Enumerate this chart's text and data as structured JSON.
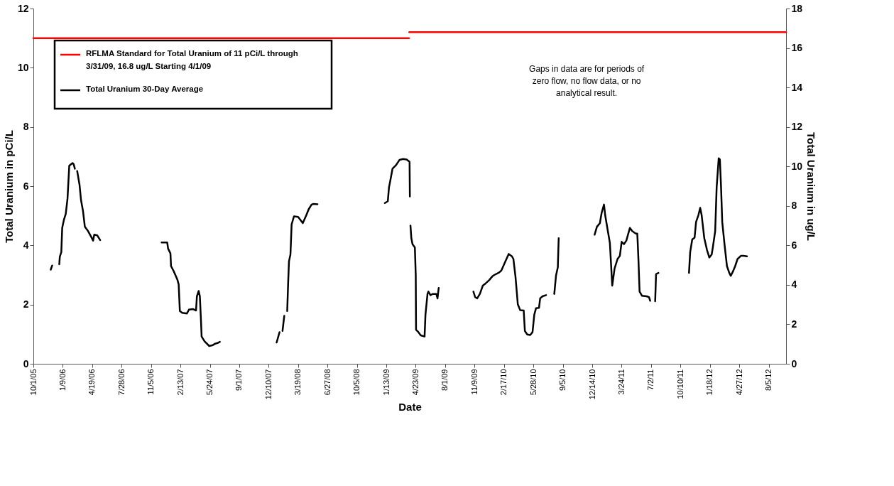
{
  "chart_data": {
    "type": "line",
    "xlabel": "Date",
    "ylabel": "Total Uranium in pCi/L",
    "y2label": "Total Uranium in ug/L",
    "xlim": [
      "2005-10-01",
      "2012-10-03"
    ],
    "xticks": [
      {
        "value": "2005-10-01",
        "label": "10/1/05"
      },
      {
        "value": "2006-01-09",
        "label": "1/9/06"
      },
      {
        "value": "2006-04-19",
        "label": "4/19/06"
      },
      {
        "value": "2006-07-28",
        "label": "7/28/06"
      },
      {
        "value": "2006-11-05",
        "label": "11/5/06"
      },
      {
        "value": "2007-02-13",
        "label": "2/13/07"
      },
      {
        "value": "2007-05-24",
        "label": "5/24/07"
      },
      {
        "value": "2007-09-01",
        "label": "9/1/07"
      },
      {
        "value": "2007-12-10",
        "label": "12/10/07"
      },
      {
        "value": "2008-03-19",
        "label": "3/19/08"
      },
      {
        "value": "2008-06-27",
        "label": "6/27/08"
      },
      {
        "value": "2008-10-05",
        "label": "10/5/08"
      },
      {
        "value": "2009-01-13",
        "label": "1/13/09"
      },
      {
        "value": "2009-04-23",
        "label": "4/23/09"
      },
      {
        "value": "2009-08-01",
        "label": "8/1/09"
      },
      {
        "value": "2009-11-09",
        "label": "11/9/09"
      },
      {
        "value": "2010-02-17",
        "label": "2/17/10"
      },
      {
        "value": "2010-05-28",
        "label": "5/28/10"
      },
      {
        "value": "2010-09-05",
        "label": "9/5/10"
      },
      {
        "value": "2010-12-14",
        "label": "12/14/10"
      },
      {
        "value": "2011-03-24",
        "label": "3/24/11"
      },
      {
        "value": "2011-07-02",
        "label": "7/2/11"
      },
      {
        "value": "2011-10-10",
        "label": "10/10/11"
      },
      {
        "value": "2012-01-18",
        "label": "1/18/12"
      },
      {
        "value": "2012-04-27",
        "label": "4/27/12"
      },
      {
        "value": "2012-08-05",
        "label": "8/5/12"
      }
    ],
    "ylim": [
      0,
      12
    ],
    "yticks": [
      0,
      2,
      4,
      6,
      8,
      10,
      12
    ],
    "y2lim": [
      0,
      18
    ],
    "y2ticks": [
      0,
      2,
      4,
      6,
      8,
      10,
      12,
      14,
      16,
      18
    ],
    "legend": "top left",
    "line_style": "solid",
    "annotations": [
      "Gaps in data are for periods of zero flow,  no flow data, or no analytical result."
    ],
    "series": [
      {
        "name": "RFLMA Standard for Total Uranium of 11 pCi/L through 3/31/09, 16.8 ug/L Starting 4/1/09",
        "color": "#ff0000",
        "x": [
          "2005-10-01",
          "2009-03-31"
        ],
        "values": [
          11,
          11
        ]
      },
      {
        "color": "#ff0000",
        "axis": "y2",
        "x": [
          "2009-04-01",
          "2012-10-03"
        ],
        "values": [
          16.8,
          16.8
        ]
      },
      {
        "name": "Total Uranium 30-Day Average",
        "color": "#000000",
        "x": [
          "2005-11-29",
          "2005-12-04",
          "2005-12-16",
          "2005-12-28",
          "2005-12-30",
          "2006-01-04",
          "2006-01-07",
          "2006-01-13",
          "2006-01-19",
          "2006-01-25",
          "2006-01-31",
          "2006-02-11",
          "2006-02-15",
          "2006-02-19",
          "2006-02-23",
          "2006-02-27",
          "2006-03-07",
          "2006-03-12",
          "2006-03-19",
          "2006-03-25",
          "2006-04-05",
          "2006-04-16",
          "2006-04-22",
          "2006-04-26",
          "2006-05-06",
          "2006-05-16",
          "2006-09-01",
          "2006-12-11",
          "2006-12-30",
          "2007-01-02",
          "2007-01-10",
          "2007-01-12",
          "2007-01-22",
          "2007-02-03",
          "2007-02-07",
          "2007-02-11",
          "2007-02-19",
          "2007-03-07",
          "2007-03-14",
          "2007-03-27",
          "2007-04-07",
          "2007-04-10",
          "2007-04-16",
          "2007-04-20",
          "2007-04-24",
          "2007-04-26",
          "2007-05-06",
          "2007-05-22",
          "2007-06-03",
          "2007-06-11",
          "2007-06-19",
          "2007-06-27",
          "2007-10-01",
          "2008-01-06",
          "2008-01-16",
          "2008-01-21",
          "2008-01-26",
          "2008-02-01",
          "2008-02-06",
          "2008-02-11",
          "2008-02-14",
          "2008-02-17",
          "2008-02-22",
          "2008-02-26",
          "2008-03-05",
          "2008-03-19",
          "2008-04-04",
          "2008-04-16",
          "2008-04-24",
          "2008-05-04",
          "2008-05-10",
          "2008-05-24",
          "2008-09-01",
          "2009-01-08",
          "2009-01-18",
          "2009-01-22",
          "2009-01-26",
          "2009-02-03",
          "2009-02-15",
          "2009-02-27",
          "2009-03-11",
          "2009-03-23",
          "2009-04-02",
          "2009-04-03",
          "2009-04-04",
          "2009-04-05",
          "2009-04-08",
          "2009-04-12",
          "2009-04-20",
          "2009-04-23",
          "2009-04-24",
          "2009-05-02",
          "2009-05-10",
          "2009-05-23",
          "2009-05-26",
          "2009-06-02",
          "2009-06-05",
          "2009-06-12",
          "2009-06-20",
          "2009-07-02",
          "2009-07-06",
          "2009-07-10",
          "2009-09-01",
          "2009-11-05",
          "2009-11-11",
          "2009-11-18",
          "2009-11-27",
          "2009-12-07",
          "2009-12-17",
          "2009-12-29",
          "2010-01-08",
          "2010-01-15",
          "2010-01-31",
          "2010-02-08",
          "2010-02-20",
          "2010-03-05",
          "2010-03-16",
          "2010-03-21",
          "2010-03-28",
          "2010-04-05",
          "2010-04-13",
          "2010-04-25",
          "2010-04-29",
          "2010-05-07",
          "2010-05-17",
          "2010-05-25",
          "2010-05-31",
          "2010-06-06",
          "2010-06-16",
          "2010-06-20",
          "2010-06-28",
          "2010-07-10",
          "2010-07-25",
          "2010-08-07",
          "2010-08-13",
          "2010-08-19",
          "2010-08-22",
          "2010-10-15",
          "2010-12-22",
          "2010-12-30",
          "2011-01-09",
          "2011-01-15",
          "2011-01-23",
          "2011-01-27",
          "2011-02-04",
          "2011-02-12",
          "2011-02-20",
          "2011-02-28",
          "2011-03-10",
          "2011-03-18",
          "2011-03-24",
          "2011-04-01",
          "2011-04-09",
          "2011-04-21",
          "2011-04-29",
          "2011-05-11",
          "2011-05-16",
          "2011-05-17",
          "2011-05-20",
          "2011-05-24",
          "2011-06-01",
          "2011-06-17",
          "2011-06-25",
          "2011-06-29",
          "2011-07-08",
          "2011-07-16",
          "2011-07-19",
          "2011-07-27",
          "2011-09-15",
          "2011-11-08",
          "2011-11-12",
          "2011-11-19",
          "2011-11-27",
          "2011-12-02",
          "2011-12-10",
          "2011-12-16",
          "2011-12-21",
          "2011-12-30",
          "2012-01-08",
          "2012-01-16",
          "2012-01-24",
          "2012-01-28",
          "2012-02-05",
          "2012-02-10",
          "2012-02-17",
          "2012-02-21",
          "2012-02-25",
          "2012-02-29",
          "2012-03-08",
          "2012-03-16",
          "2012-03-24",
          "2012-03-29",
          "2012-04-05",
          "2012-04-13",
          "2012-04-21",
          "2012-05-03",
          "2012-05-11",
          "2012-05-23"
        ],
        "values": [
          3.18,
          3.32,
          null,
          3.36,
          3.62,
          3.77,
          4.59,
          4.87,
          5.06,
          5.57,
          6.69,
          6.78,
          6.74,
          6.59,
          null,
          6.51,
          6.04,
          5.53,
          5.14,
          4.63,
          4.48,
          4.28,
          4.16,
          4.36,
          4.34,
          4.18,
          null,
          4.1,
          4.1,
          3.89,
          3.73,
          3.3,
          3.11,
          2.83,
          2.68,
          1.78,
          1.72,
          1.7,
          1.83,
          1.85,
          1.8,
          2.28,
          2.46,
          2.28,
          1.42,
          0.92,
          0.76,
          0.6,
          0.63,
          0.68,
          0.7,
          0.74,
          null,
          0.72,
          1.07,
          null,
          1.11,
          1.62,
          null,
          1.78,
          2.68,
          3.46,
          3.69,
          4.71,
          4.98,
          4.96,
          4.75,
          5.02,
          5.22,
          5.38,
          5.4,
          5.39,
          null,
          5.43,
          5.49,
          5.96,
          6.16,
          6.59,
          6.71,
          6.89,
          6.92,
          6.9,
          6.82,
          5.65,
          null,
          4.67,
          4.24,
          4.04,
          3.93,
          2.99,
          1.15,
          1.07,
          0.96,
          0.92,
          1.66,
          2.36,
          2.44,
          2.32,
          2.36,
          2.36,
          2.21,
          2.56,
          null,
          2.44,
          2.25,
          2.21,
          2.36,
          2.64,
          2.72,
          2.83,
          2.95,
          3.0,
          3.08,
          3.15,
          3.42,
          3.71,
          3.63,
          3.54,
          2.95,
          2.01,
          1.81,
          1.8,
          1.11,
          0.99,
          0.97,
          1.07,
          1.66,
          1.88,
          1.89,
          2.21,
          2.28,
          2.32,
          null,
          2.36,
          2.99,
          3.26,
          4.24,
          null,
          4.36,
          4.63,
          4.75,
          5.1,
          5.38,
          5.02,
          4.55,
          4.08,
          2.64,
          3.22,
          3.54,
          3.65,
          4.12,
          4.04,
          4.16,
          4.59,
          4.48,
          4.4,
          4.4,
          4.24,
          3.54,
          2.44,
          2.3,
          2.28,
          2.25,
          2.13,
          null,
          2.11,
          3.03,
          3.07,
          null,
          3.07,
          3.77,
          4.2,
          4.26,
          4.79,
          5.02,
          5.27,
          5.02,
          4.24,
          3.85,
          3.59,
          3.69,
          3.93,
          4.48,
          5.96,
          6.94,
          6.9,
          5.96,
          4.79,
          4.01,
          3.3,
          3.07,
          2.97,
          3.11,
          3.3,
          3.54,
          3.65,
          3.65,
          3.63
        ]
      }
    ]
  }
}
